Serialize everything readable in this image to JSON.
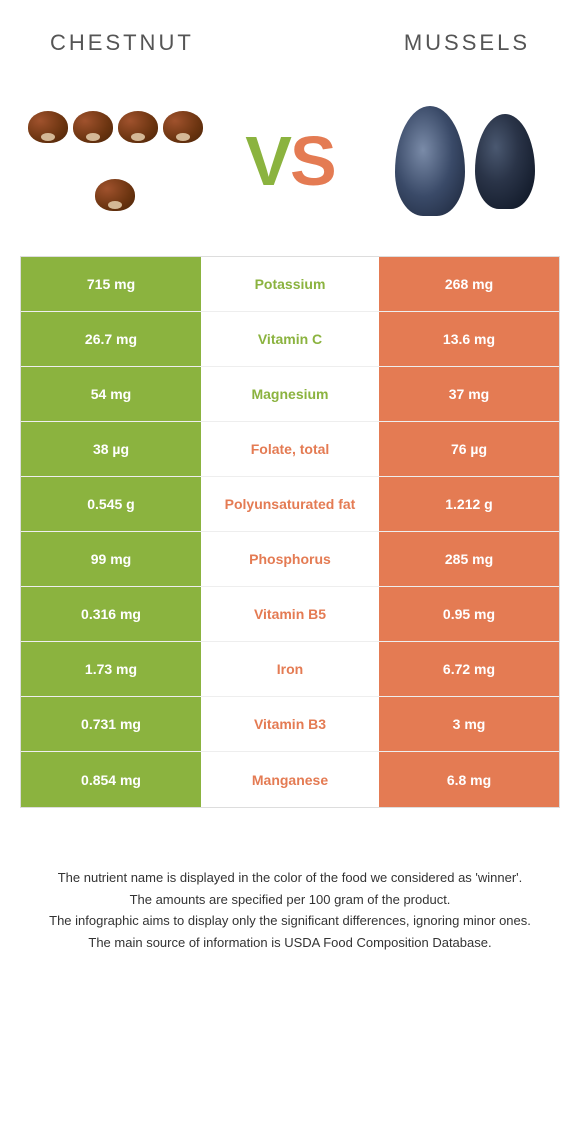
{
  "header": {
    "left_title": "CHESTNUT",
    "right_title": "MUSSELS"
  },
  "vs": {
    "v": "V",
    "s": "S"
  },
  "colors": {
    "green": "#8bb33f",
    "orange": "#e47b53"
  },
  "rows": [
    {
      "left_val": "715 mg",
      "label": "Potassium",
      "right_val": "268 mg",
      "winner": "left"
    },
    {
      "left_val": "26.7 mg",
      "label": "Vitamin C",
      "right_val": "13.6 mg",
      "winner": "left"
    },
    {
      "left_val": "54 mg",
      "label": "Magnesium",
      "right_val": "37 mg",
      "winner": "left"
    },
    {
      "left_val": "38 µg",
      "label": "Folate, total",
      "right_val": "76 µg",
      "winner": "right"
    },
    {
      "left_val": "0.545 g",
      "label": "Polyunsaturated fat",
      "right_val": "1.212 g",
      "winner": "right"
    },
    {
      "left_val": "99 mg",
      "label": "Phosphorus",
      "right_val": "285 mg",
      "winner": "right"
    },
    {
      "left_val": "0.316 mg",
      "label": "Vitamin B5",
      "right_val": "0.95 mg",
      "winner": "right"
    },
    {
      "left_val": "1.73 mg",
      "label": "Iron",
      "right_val": "6.72 mg",
      "winner": "right"
    },
    {
      "left_val": "0.731 mg",
      "label": "Vitamin B3",
      "right_val": "3 mg",
      "winner": "right"
    },
    {
      "left_val": "0.854 mg",
      "label": "Manganese",
      "right_val": "6.8 mg",
      "winner": "right"
    }
  ],
  "footnotes": {
    "line1": "The nutrient name is displayed in the color of the food we considered as 'winner'.",
    "line2": "The amounts are specified per 100 gram of the product.",
    "line3": "The infographic aims to display only the significant differences, ignoring minor ones.",
    "line4": "The main source of information is USDA Food Composition Database."
  }
}
